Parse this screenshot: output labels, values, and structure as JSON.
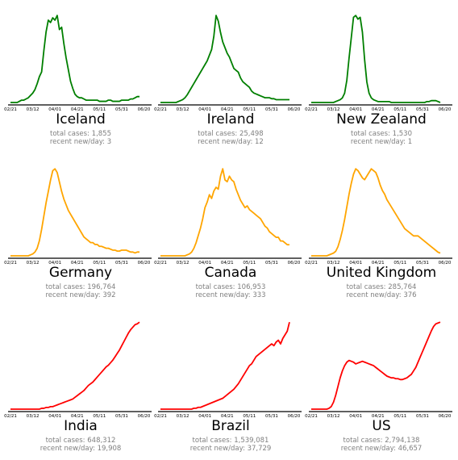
{
  "x_ticks": [
    "02/21",
    "03/12",
    "04/01",
    "04/21",
    "05/11",
    "05/31",
    "06/20"
  ],
  "labels": {
    "total_prefix": "total cases: ",
    "recent_prefix": "recent new/day: "
  },
  "colors": {
    "green": "#007f00",
    "orange": "#ffa500",
    "red": "#ff0000"
  },
  "chart_data": [
    {
      "type": "line",
      "country": "Iceland",
      "color": "#007f00",
      "total_cases": "1,855",
      "recent_per_day": "3",
      "y": [
        0,
        0,
        0,
        0,
        1,
        2,
        2,
        3,
        4,
        6,
        8,
        11,
        16,
        22,
        26,
        44,
        60,
        70,
        68,
        72,
        70,
        74,
        62,
        64,
        50,
        38,
        28,
        18,
        12,
        7,
        5,
        4,
        4,
        3,
        2,
        2,
        2,
        2,
        2,
        2,
        1,
        1,
        1,
        1,
        2,
        2,
        1,
        1,
        1,
        1,
        2,
        2,
        2,
        2,
        3,
        3,
        4,
        5,
        5
      ]
    },
    {
      "type": "line",
      "country": "Ireland",
      "color": "#007f00",
      "total_cases": "25,498",
      "recent_per_day": "12",
      "y": [
        0,
        0,
        0,
        0,
        0,
        0,
        0,
        0,
        1,
        2,
        3,
        5,
        8,
        12,
        16,
        20,
        24,
        28,
        32,
        36,
        40,
        44,
        50,
        56,
        70,
        92,
        86,
        74,
        64,
        58,
        52,
        48,
        42,
        36,
        34,
        32,
        26,
        22,
        20,
        18,
        16,
        12,
        10,
        9,
        8,
        7,
        6,
        5,
        5,
        5,
        4,
        4,
        3,
        3,
        3,
        3,
        3,
        3,
        3
      ]
    },
    {
      "type": "line",
      "country": "New Zealand",
      "color": "#007f00",
      "total_cases": "1,530",
      "recent_per_day": "1",
      "y": [
        0,
        0,
        0,
        0,
        0,
        0,
        0,
        0,
        0,
        0,
        0,
        1,
        2,
        3,
        5,
        10,
        24,
        48,
        70,
        92,
        94,
        90,
        92,
        76,
        46,
        22,
        10,
        5,
        3,
        2,
        1,
        1,
        1,
        1,
        1,
        1,
        0,
        0,
        0,
        0,
        0,
        0,
        0,
        0,
        0,
        0,
        0,
        0,
        0,
        0,
        0,
        0,
        1,
        1,
        2,
        2,
        2,
        1,
        0
      ]
    },
    {
      "type": "line",
      "country": "Germany",
      "color": "#ffa500",
      "total_cases": "196,764",
      "recent_per_day": "392",
      "y": [
        0,
        0,
        0,
        0,
        0,
        0,
        0,
        0,
        0,
        1,
        2,
        4,
        8,
        16,
        28,
        42,
        56,
        68,
        80,
        90,
        92,
        88,
        78,
        68,
        60,
        54,
        48,
        44,
        40,
        36,
        32,
        28,
        24,
        20,
        18,
        16,
        14,
        14,
        12,
        12,
        10,
        10,
        9,
        8,
        8,
        7,
        6,
        6,
        5,
        5,
        6,
        6,
        6,
        5,
        4,
        4,
        3,
        4,
        4
      ]
    },
    {
      "type": "line",
      "country": "Canada",
      "color": "#ffa500",
      "total_cases": "106,953",
      "recent_per_day": "333",
      "y": [
        0,
        0,
        0,
        0,
        0,
        0,
        0,
        0,
        0,
        0,
        0,
        0,
        1,
        2,
        4,
        8,
        14,
        22,
        30,
        40,
        52,
        58,
        66,
        62,
        70,
        74,
        72,
        86,
        94,
        82,
        80,
        86,
        82,
        80,
        72,
        66,
        60,
        56,
        52,
        54,
        50,
        48,
        46,
        44,
        42,
        40,
        36,
        32,
        30,
        26,
        24,
        22,
        20,
        20,
        16,
        16,
        14,
        12,
        12
      ]
    },
    {
      "type": "line",
      "country": "United Kingdom",
      "color": "#ffa500",
      "total_cases": "285,764",
      "recent_per_day": "376",
      "y": [
        0,
        0,
        0,
        0,
        0,
        0,
        0,
        0,
        1,
        2,
        3,
        5,
        10,
        18,
        28,
        40,
        54,
        68,
        80,
        90,
        96,
        94,
        90,
        86,
        84,
        88,
        92,
        96,
        94,
        92,
        86,
        78,
        72,
        68,
        62,
        58,
        54,
        50,
        46,
        42,
        38,
        34,
        30,
        28,
        26,
        24,
        22,
        22,
        22,
        20,
        18,
        16,
        14,
        12,
        10,
        8,
        6,
        4,
        3
      ]
    },
    {
      "type": "line",
      "country": "India",
      "color": "#ff0000",
      "total_cases": "648,312",
      "recent_per_day": "19,908",
      "y": [
        0,
        0,
        0,
        0,
        0,
        0,
        0,
        0,
        0,
        0,
        0,
        0,
        0,
        0,
        1,
        1,
        2,
        2,
        3,
        3,
        4,
        5,
        6,
        7,
        8,
        9,
        10,
        11,
        12,
        14,
        16,
        18,
        20,
        22,
        25,
        28,
        30,
        32,
        35,
        38,
        41,
        44,
        47,
        50,
        52,
        55,
        58,
        62,
        66,
        70,
        75,
        80,
        85,
        90,
        94,
        97,
        100,
        101,
        103
      ]
    },
    {
      "type": "line",
      "country": "Brazil",
      "color": "#ff0000",
      "total_cases": "1,539,081",
      "recent_per_day": "37,729",
      "y": [
        0,
        0,
        0,
        0,
        0,
        0,
        0,
        0,
        0,
        0,
        0,
        0,
        0,
        0,
        0,
        1,
        1,
        2,
        2,
        3,
        4,
        5,
        6,
        7,
        8,
        9,
        10,
        11,
        12,
        14,
        16,
        18,
        20,
        22,
        25,
        28,
        32,
        36,
        40,
        44,
        48,
        50,
        54,
        58,
        60,
        62,
        64,
        66,
        68,
        70,
        72,
        70,
        74,
        76,
        72,
        78,
        82,
        86,
        96
      ]
    },
    {
      "type": "line",
      "country": "US",
      "color": "#ff0000",
      "total_cases": "2,794,138",
      "recent_per_day": "46,657",
      "y": [
        0,
        0,
        0,
        0,
        0,
        0,
        0,
        0,
        1,
        3,
        8,
        16,
        26,
        36,
        44,
        50,
        54,
        56,
        55,
        54,
        52,
        53,
        54,
        55,
        54,
        53,
        52,
        51,
        50,
        48,
        46,
        44,
        42,
        40,
        38,
        37,
        36,
        36,
        35,
        35,
        34,
        34,
        35,
        36,
        38,
        40,
        44,
        48,
        54,
        60,
        66,
        72,
        78,
        84,
        90,
        95,
        98,
        99,
        100
      ]
    }
  ]
}
